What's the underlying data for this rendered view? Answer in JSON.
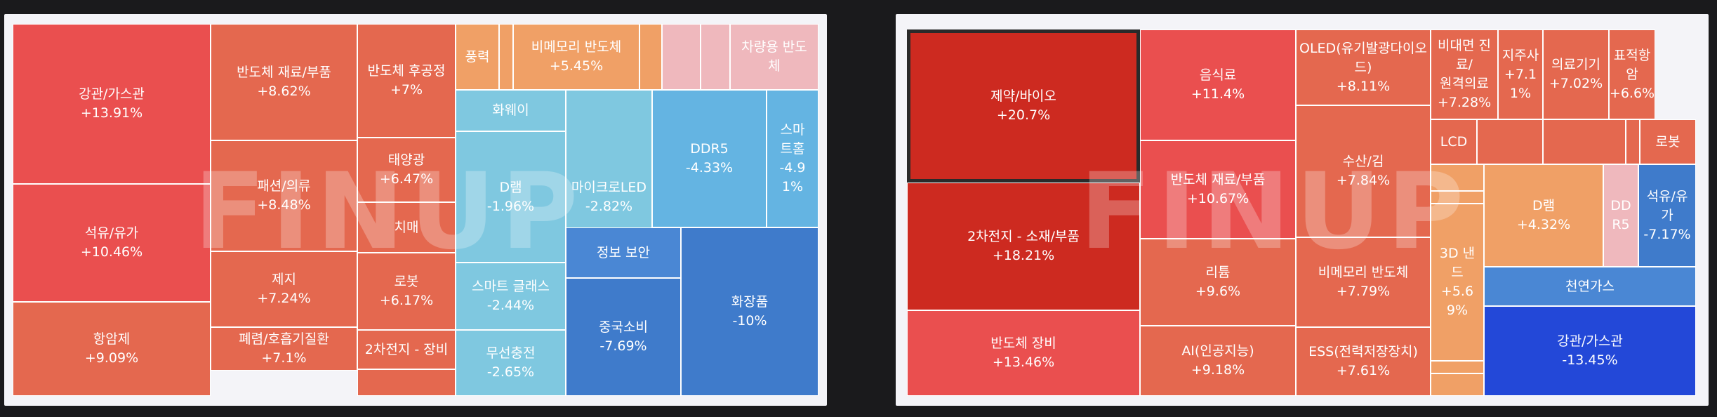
{
  "watermark": "FINUP",
  "chart_data": [
    {
      "type": "treemap",
      "title": "",
      "cells": [
        {
          "label": "강관/가스관",
          "change": "+13.91%",
          "color": "#ea4f4f"
        },
        {
          "label": "석유/유가",
          "change": "+10.46%",
          "color": "#ea4f4f"
        },
        {
          "label": "항암제",
          "change": "+9.09%",
          "color": "#e4684f"
        },
        {
          "label": "반도체 재료/부품",
          "change": "+8.62%",
          "color": "#e4684f"
        },
        {
          "label": "패션/의류",
          "change": "+8.48%",
          "color": "#e4684f"
        },
        {
          "label": "제지",
          "change": "+7.24%",
          "color": "#e4684f"
        },
        {
          "label": "폐렴/호흡기질환",
          "change": "+7.1%",
          "color": "#e4684f"
        },
        {
          "label": "반도체 후공정",
          "change": "+7%",
          "color": "#e4684f"
        },
        {
          "label": "태양광",
          "change": "+6.47%",
          "color": "#e4684f"
        },
        {
          "label": "치매",
          "change": "",
          "color": "#e4684f"
        },
        {
          "label": "로봇",
          "change": "+6.17%",
          "color": "#e4684f"
        },
        {
          "label": "2차전지 - 장비",
          "change": "",
          "color": "#e4684f"
        },
        {
          "label": "",
          "change": "",
          "color": "#e4684f"
        },
        {
          "label": "풍력",
          "change": "",
          "color": "#f0a066"
        },
        {
          "label": "",
          "change": "",
          "color": "#f0a066"
        },
        {
          "label": "비메모리 반도체",
          "change": "+5.45%",
          "color": "#f0a066"
        },
        {
          "label": "",
          "change": "",
          "color": "#f0a066"
        },
        {
          "label": "",
          "change": "",
          "color": "#efb8bd"
        },
        {
          "label": "",
          "change": "",
          "color": "#efb8bd"
        },
        {
          "label": "차량용 반도\n체",
          "change": "",
          "color": "#efb8bd"
        },
        {
          "label": "화웨이",
          "change": "",
          "color": "#7fc8e0"
        },
        {
          "label": "D램",
          "change": "-1.96%",
          "color": "#7fc8e0"
        },
        {
          "label": "마이크로LED",
          "change": "-2.82%",
          "color": "#7fc8e0"
        },
        {
          "label": "스마트 글래스",
          "change": "-2.44%",
          "color": "#7fc8e0"
        },
        {
          "label": "무선충전",
          "change": "-2.65%",
          "color": "#7fc8e0"
        },
        {
          "label": "DDR5",
          "change": "-4.33%",
          "color": "#64b4e2"
        },
        {
          "label": "스마\n트홈",
          "change": "-4.9\n1%",
          "color": "#64b4e2"
        },
        {
          "label": "정보 보안",
          "change": "",
          "color": "#4a87d4"
        },
        {
          "label": "중국소비",
          "change": "-7.69%",
          "color": "#3f7bcb"
        },
        {
          "label": "화장품",
          "change": "-10%",
          "color": "#3f7bcb"
        }
      ]
    },
    {
      "type": "treemap",
      "title": "",
      "cells": [
        {
          "label": "제약/바이오",
          "change": "+20.7%",
          "color": "#cd2a20"
        },
        {
          "label": "2차전지 - 소재/부품",
          "change": "+18.21%",
          "color": "#cd2a20"
        },
        {
          "label": "반도체 장비",
          "change": "+13.46%",
          "color": "#ea4f4f"
        },
        {
          "label": "음식료",
          "change": "+11.4%",
          "color": "#ea4f4f"
        },
        {
          "label": "반도체 재료/부품",
          "change": "+10.67%",
          "color": "#ea4f4f"
        },
        {
          "label": "리튬",
          "change": "+9.6%",
          "color": "#e4684f"
        },
        {
          "label": "AI(인공지능)",
          "change": "+9.18%",
          "color": "#e4684f"
        },
        {
          "label": "OLED(유기발광다이오\n드)",
          "change": "+8.11%",
          "color": "#e4684f"
        },
        {
          "label": "수산/김",
          "change": "+7.84%",
          "color": "#e4684f"
        },
        {
          "label": "비메모리 반도체",
          "change": "+7.79%",
          "color": "#e4684f"
        },
        {
          "label": "ESS(전력저장장치)",
          "change": "+7.61%",
          "color": "#e4684f"
        },
        {
          "label": "비대면 진료/\n원격의료",
          "change": "+7.28%",
          "color": "#e4684f"
        },
        {
          "label": "지주사",
          "change": "+7.1\n1%",
          "color": "#e4684f"
        },
        {
          "label": "의료기기",
          "change": "+7.02%",
          "color": "#e4684f"
        },
        {
          "label": "표적항\n암",
          "change": "+6.6%",
          "color": "#e4684f"
        },
        {
          "label": "LCD",
          "change": "",
          "color": "#e4684f"
        },
        {
          "label": "",
          "change": "",
          "color": "#e4684f"
        },
        {
          "label": "",
          "change": "",
          "color": "#e4684f"
        },
        {
          "label": "",
          "change": "",
          "color": "#e4684f"
        },
        {
          "label": "로봇",
          "change": "",
          "color": "#e4684f"
        },
        {
          "label": "",
          "change": "",
          "color": "#f0a066"
        },
        {
          "label": "",
          "change": "",
          "color": "#f0a066"
        },
        {
          "label": "3D 낸\n드",
          "change": "+5.6\n9%",
          "color": "#f0a066"
        },
        {
          "label": "",
          "change": "",
          "color": "#f0a066"
        },
        {
          "label": "",
          "change": "",
          "color": "#f0a066"
        },
        {
          "label": "D램",
          "change": "+4.32%",
          "color": "#f0a066"
        },
        {
          "label": "DD\nR5",
          "change": "",
          "color": "#efb8bd"
        },
        {
          "label": "석유/유\n가",
          "change": "-7.17%",
          "color": "#3f7bcb"
        },
        {
          "label": "천연가스",
          "change": "",
          "color": "#4a87d4"
        },
        {
          "label": "강관/가스관",
          "change": "-13.45%",
          "color": "#2348d8"
        }
      ]
    }
  ]
}
